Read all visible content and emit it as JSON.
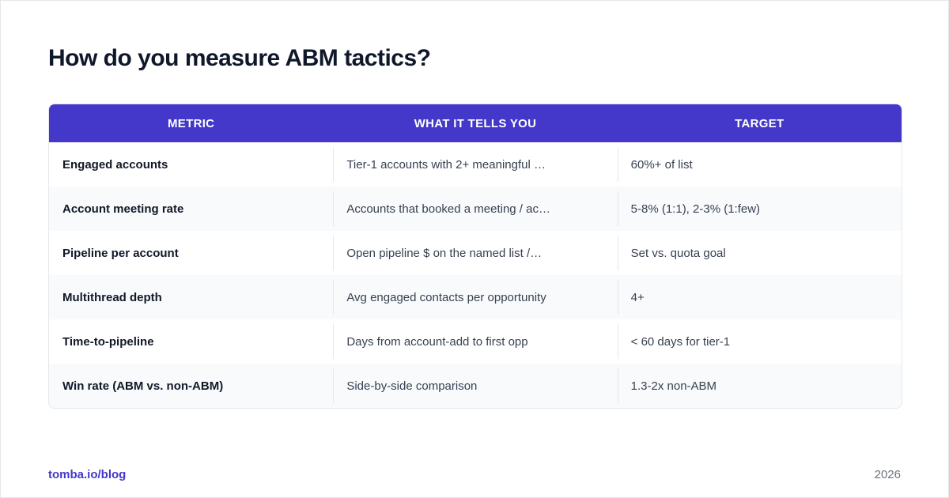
{
  "title": "How do you measure ABM tactics?",
  "table": {
    "headers": [
      "METRIC",
      "WHAT IT TELLS YOU",
      "TARGET"
    ],
    "rows": [
      {
        "metric": "Engaged accounts",
        "meaning": "Tier-1 accounts with 2+ meaningful …",
        "target": "60%+ of list"
      },
      {
        "metric": "Account meeting rate",
        "meaning": "Accounts that booked a meeting / ac…",
        "target": "5-8% (1:1), 2-3% (1:few)"
      },
      {
        "metric": "Pipeline per account",
        "meaning": "Open pipeline $ on the named list /…",
        "target": "Set vs. quota goal"
      },
      {
        "metric": "Multithread depth",
        "meaning": "Avg engaged contacts per opportunity",
        "target": "4+"
      },
      {
        "metric": "Time-to-pipeline",
        "meaning": "Days from account-add to first opp",
        "target": "< 60 days for tier-1"
      },
      {
        "metric": "Win rate (ABM vs. non-ABM)",
        "meaning": "Side-by-side comparison",
        "target": "1.3-2x non-ABM"
      }
    ]
  },
  "footer": {
    "link": "tomba.io/blog",
    "year": "2026"
  },
  "colors": {
    "header_bg": "#4338ca",
    "accent": "#4338ca",
    "row_alt": "#f8fafc"
  }
}
